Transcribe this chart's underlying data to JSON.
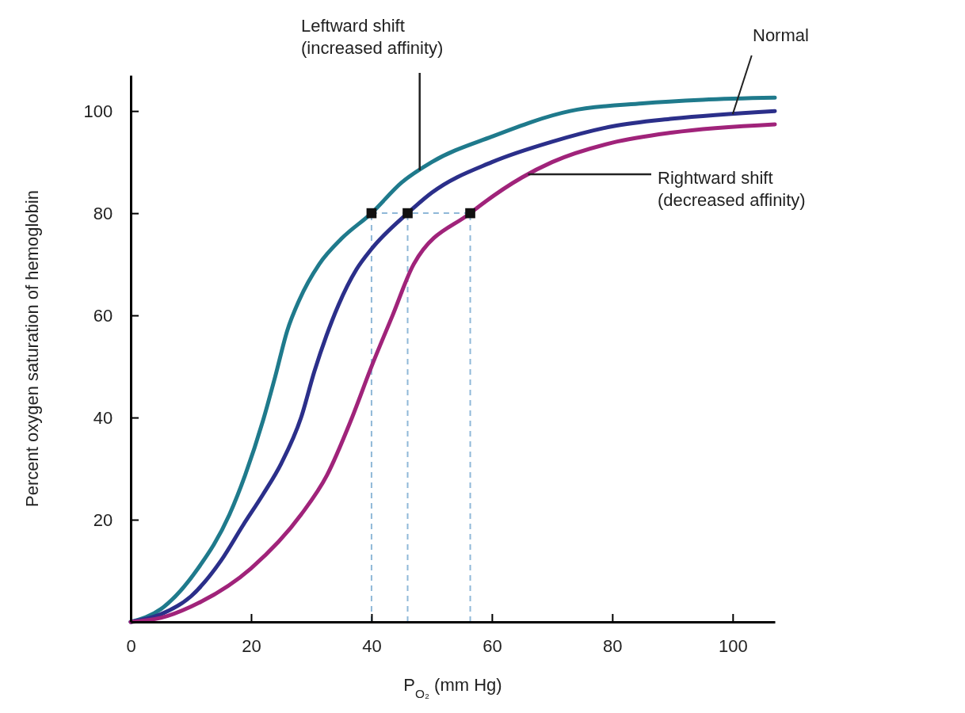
{
  "chart_data": {
    "type": "line",
    "xlabel": "P$_{O₂}$ (mm Hg)",
    "ylabel": "Percent oxygen saturation of hemoglobin",
    "xlim": [
      0,
      107
    ],
    "ylim": [
      0,
      107
    ],
    "xticks": [
      0,
      20,
      40,
      60,
      80,
      100
    ],
    "yticks": [
      20,
      40,
      60,
      80,
      100
    ],
    "grid": false,
    "line_style": "solid",
    "marker": "none",
    "series": [
      {
        "name": "Leftward shift\n(increased affinity)",
        "color": "#1f7a8c",
        "x": [
          0,
          5,
          11.2,
          16.4,
          19,
          22,
          24,
          26,
          28,
          31.3,
          35,
          40,
          45,
          50,
          60,
          73,
          85,
          95,
          107
        ],
        "values": [
          0,
          2.5,
          10.5,
          21,
          28.7,
          39.5,
          48,
          57,
          63,
          70,
          75,
          80,
          86,
          90,
          95,
          100,
          101.5,
          102.2,
          102.6
        ]
      },
      {
        "name": "Normal",
        "color": "#2b2f8a",
        "x": [
          0,
          5,
          10,
          15,
          18.7,
          22,
          25,
          28.3,
          30.5,
          32.5,
          34.5,
          37.5,
          40,
          46,
          50,
          60,
          70,
          80,
          90,
          107
        ],
        "values": [
          0,
          1.5,
          5,
          12,
          19,
          25,
          31,
          40,
          49,
          56,
          62,
          69,
          73,
          80,
          84,
          90,
          94,
          97,
          98.5,
          100
        ]
      },
      {
        "name": "Rightward shift\n(decreased affinity)",
        "color": "#a0237a",
        "x": [
          0,
          5,
          10,
          20,
          28.3,
          32.6,
          36.6,
          40,
          43.5,
          47,
          56.4,
          65,
          70,
          80,
          90,
          107
        ],
        "values": [
          0,
          0.8,
          3,
          10.5,
          21,
          28.7,
          39.5,
          50,
          60,
          70,
          80,
          87,
          90,
          93.8,
          95.8,
          97.4
        ]
      },
      {
        "type": "scatter",
        "marker": "square",
        "color": "#111111",
        "x": [
          40,
          46,
          56.4
        ],
        "values": [
          80,
          80,
          80
        ]
      }
    ],
    "ref_lines": [
      {
        "axis": "x",
        "value": 40,
        "color": "#8fb8d8",
        "line_style": "dashed"
      },
      {
        "axis": "x",
        "value": 46,
        "color": "#8fb8d8",
        "line_style": "dashed"
      },
      {
        "axis": "x",
        "value": 56.4,
        "color": "#8fb8d8",
        "line_style": "dashed"
      },
      {
        "axis": "y",
        "value": 80,
        "color": "#8fb8d8",
        "line_style": "dashed"
      }
    ]
  }
}
